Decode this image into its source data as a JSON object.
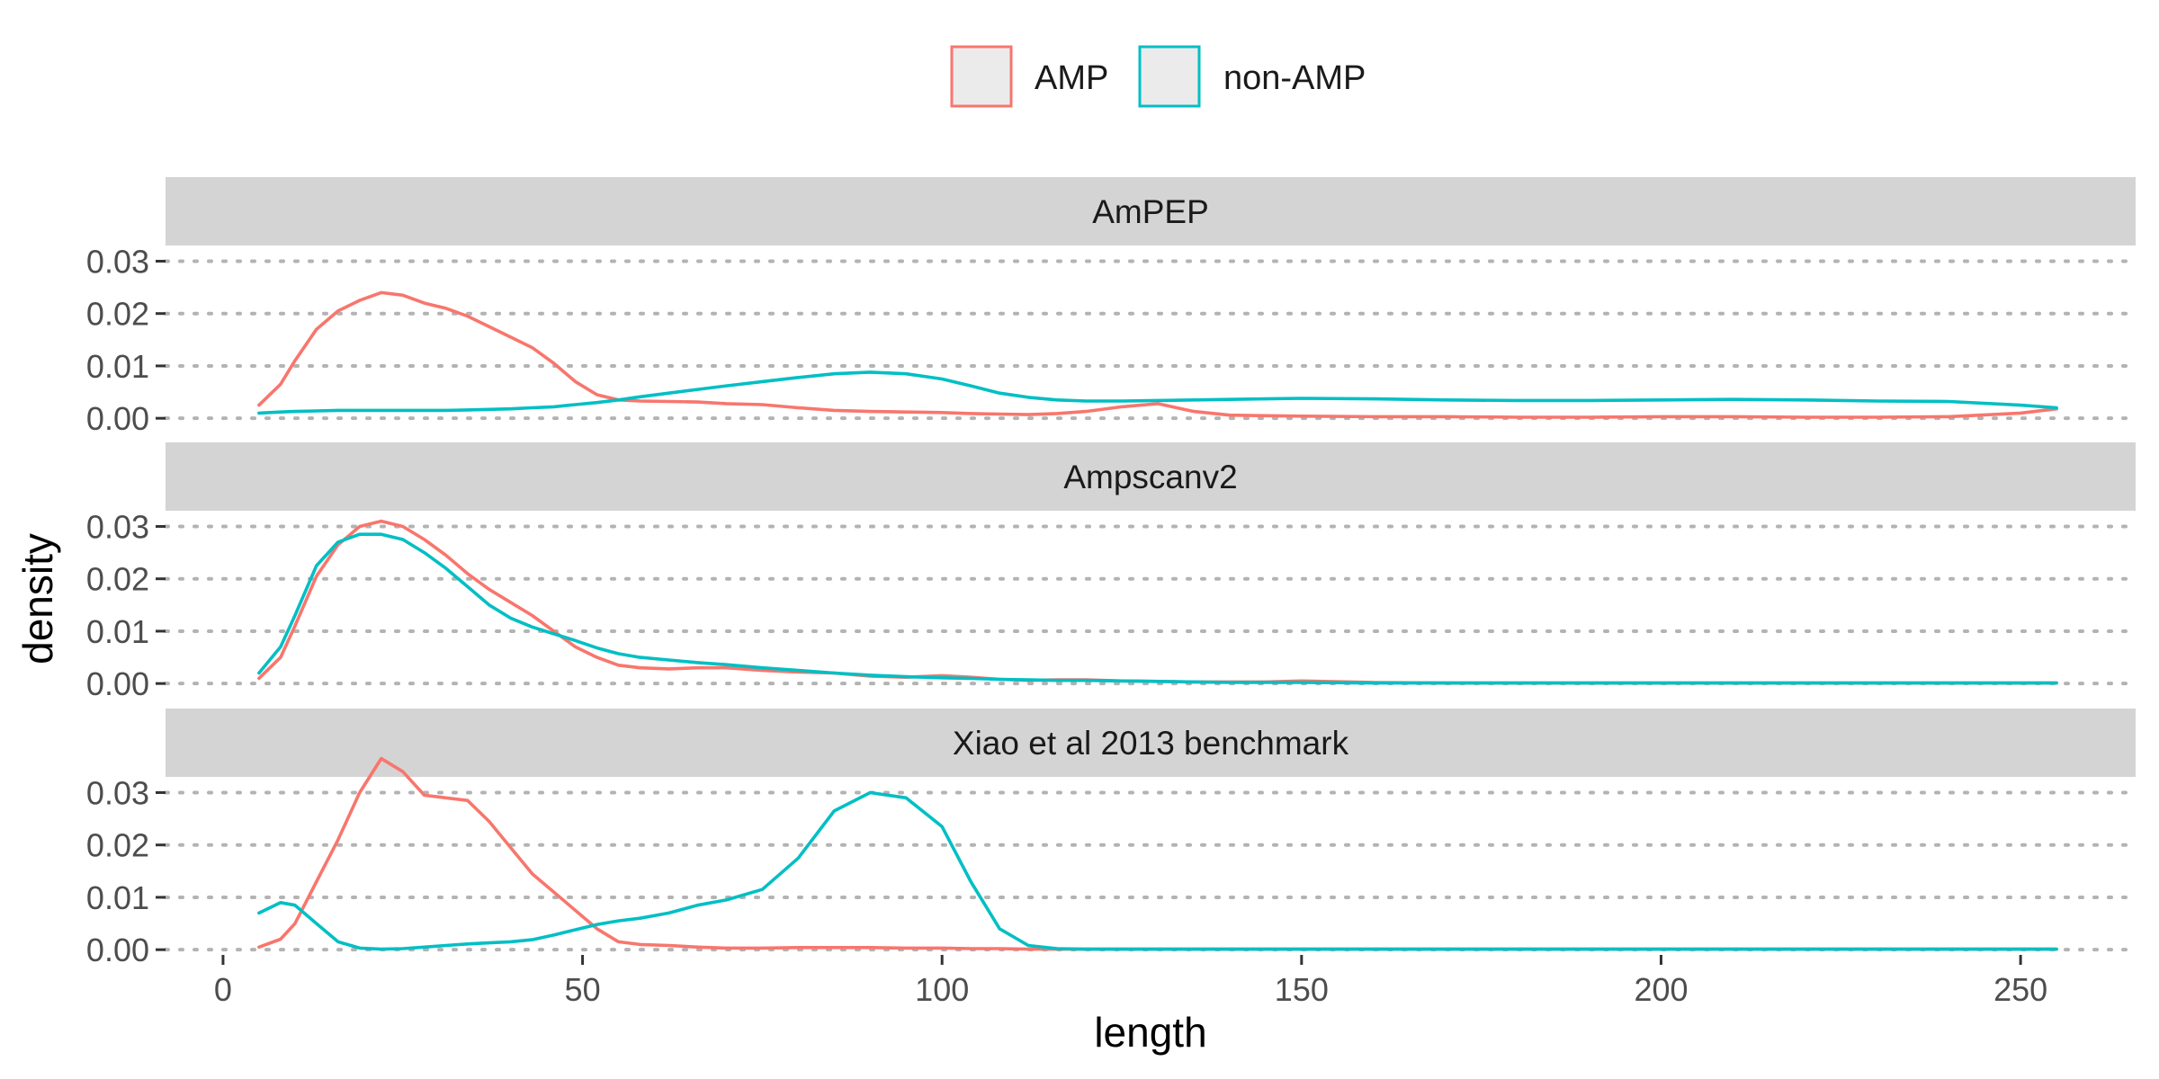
{
  "chart_data": {
    "type": "line",
    "subtype": "density (faceted)",
    "xlabel": "length",
    "ylabel": "density",
    "xlim": [
      -8,
      266
    ],
    "ylim": [
      -0.001,
      0.033
    ],
    "x_ticks": [
      0,
      50,
      100,
      150,
      200,
      250
    ],
    "x_tick_labels": [
      "0",
      "50",
      "100",
      "150",
      "200",
      "250"
    ],
    "y_ticks": [
      0,
      0.01,
      0.02,
      0.03
    ],
    "y_tick_labels": [
      "0.00",
      "0.01",
      "0.02",
      "0.03"
    ],
    "grid": "horizontal dotted",
    "legend": {
      "position": "top",
      "entries": [
        {
          "name": "AMP",
          "color": "#F8766D"
        },
        {
          "name": "non-AMP",
          "color": "#00BFC4"
        }
      ]
    },
    "x": [
      5,
      8,
      10,
      13,
      16,
      19,
      22,
      25,
      28,
      31,
      34,
      37,
      40,
      43,
      46,
      49,
      52,
      55,
      58,
      62,
      66,
      70,
      75,
      80,
      85,
      90,
      95,
      100,
      104,
      108,
      112,
      116,
      120,
      125,
      130,
      135,
      140,
      145,
      150,
      160,
      170,
      180,
      190,
      200,
      210,
      220,
      230,
      240,
      250,
      255
    ],
    "panels": [
      {
        "title": "AmPEP",
        "series": [
          {
            "name": "AMP",
            "color": "#F8766D",
            "values": [
              0.0025,
              0.0065,
              0.011,
              0.017,
              0.0205,
              0.0225,
              0.024,
              0.0235,
              0.022,
              0.021,
              0.0195,
              0.0175,
              0.0155,
              0.0135,
              0.0105,
              0.007,
              0.0045,
              0.0035,
              0.0033,
              0.0032,
              0.0031,
              0.0028,
              0.0026,
              0.002,
              0.0015,
              0.0013,
              0.0012,
              0.0011,
              0.0009,
              0.0008,
              0.0007,
              0.0009,
              0.0013,
              0.0022,
              0.0028,
              0.0013,
              0.0006,
              0.0005,
              0.0004,
              0.0003,
              0.0003,
              0.0002,
              0.0002,
              0.0003,
              0.0003,
              0.0002,
              0.0002,
              0.0003,
              0.001,
              0.0018
            ]
          },
          {
            "name": "non-AMP",
            "color": "#00BFC4",
            "values": [
              0.001,
              0.0012,
              0.0013,
              0.0014,
              0.0015,
              0.0015,
              0.0015,
              0.0015,
              0.0015,
              0.0015,
              0.0016,
              0.0017,
              0.0018,
              0.002,
              0.0022,
              0.0026,
              0.003,
              0.0035,
              0.0041,
              0.0048,
              0.0055,
              0.0062,
              0.007,
              0.0078,
              0.0085,
              0.0088,
              0.0085,
              0.0075,
              0.0062,
              0.0048,
              0.004,
              0.0035,
              0.0033,
              0.0033,
              0.0034,
              0.0035,
              0.0036,
              0.0037,
              0.0038,
              0.0037,
              0.0035,
              0.0034,
              0.0034,
              0.0035,
              0.0036,
              0.0035,
              0.0033,
              0.0032,
              0.0025,
              0.002
            ]
          }
        ]
      },
      {
        "title": "Ampscanv2",
        "series": [
          {
            "name": "AMP",
            "color": "#F8766D",
            "values": [
              0.001,
              0.005,
              0.011,
              0.0205,
              0.0265,
              0.03,
              0.031,
              0.03,
              0.0275,
              0.0245,
              0.021,
              0.018,
              0.0155,
              0.013,
              0.01,
              0.007,
              0.005,
              0.0035,
              0.003,
              0.0028,
              0.003,
              0.003,
              0.0025,
              0.0022,
              0.002,
              0.0014,
              0.0012,
              0.0015,
              0.0012,
              0.0008,
              0.0006,
              0.0007,
              0.0007,
              0.0005,
              0.0004,
              0.0003,
              0.0003,
              0.0003,
              0.0005,
              0.0002,
              0.0001,
              0.0001,
              0.0001,
              0.0001,
              0.0001,
              0.0001,
              0.0001,
              0.0001,
              0.0001,
              0.0001
            ]
          },
          {
            "name": "non-AMP",
            "color": "#00BFC4",
            "values": [
              0.002,
              0.007,
              0.013,
              0.0225,
              0.027,
              0.0285,
              0.0285,
              0.0275,
              0.025,
              0.022,
              0.0185,
              0.015,
              0.0125,
              0.0108,
              0.0095,
              0.0082,
              0.0068,
              0.0057,
              0.005,
              0.0045,
              0.004,
              0.0036,
              0.003,
              0.0025,
              0.002,
              0.0016,
              0.0013,
              0.0011,
              0.001,
              0.0008,
              0.0007,
              0.0006,
              0.0006,
              0.0005,
              0.0004,
              0.0003,
              0.0002,
              0.0002,
              0.0002,
              0.0001,
              0.0001,
              0.0001,
              0.0001,
              0.0001,
              0.0001,
              0.0001,
              0.0001,
              0.0001,
              0.0001,
              0.0001
            ]
          }
        ]
      },
      {
        "title": "Xiao et al 2013 benchmark",
        "series": [
          {
            "name": "AMP",
            "color": "#F8766D",
            "values": [
              0.0005,
              0.002,
              0.005,
              0.013,
              0.021,
              0.03,
              0.0365,
              0.034,
              0.0295,
              0.029,
              0.0285,
              0.0245,
              0.0195,
              0.0145,
              0.011,
              0.0075,
              0.004,
              0.0015,
              0.001,
              0.0008,
              0.0005,
              0.0003,
              0.0003,
              0.0004,
              0.0004,
              0.0004,
              0.0003,
              0.0003,
              0.0002,
              0.0002,
              0.0001,
              0.0001,
              0.0001,
              0.0001,
              0.0001,
              0.0001,
              0.0001,
              0.0001,
              0.0001,
              0.0001,
              0.0001,
              0.0001,
              0.0001,
              0.0001,
              0.0001,
              0.0001,
              0.0001,
              0.0001,
              0.0001,
              0.0001
            ]
          },
          {
            "name": "non-AMP",
            "color": "#00BFC4",
            "values": [
              0.007,
              0.009,
              0.0085,
              0.005,
              0.0015,
              0.0003,
              0.0001,
              0.0002,
              0.0005,
              0.0008,
              0.0011,
              0.0013,
              0.0015,
              0.0019,
              0.0028,
              0.0038,
              0.0048,
              0.0055,
              0.006,
              0.007,
              0.0085,
              0.0095,
              0.0115,
              0.0175,
              0.0265,
              0.03,
              0.029,
              0.0235,
              0.013,
              0.004,
              0.0008,
              0.0002,
              0.0001,
              0.0001,
              0.0001,
              0.0001,
              0.0001,
              0.0001,
              0.0001,
              0.0001,
              0.0001,
              0.0001,
              0.0001,
              0.0001,
              0.0001,
              0.0001,
              0.0001,
              0.0001,
              0.0001,
              0.0001
            ]
          }
        ]
      }
    ]
  }
}
